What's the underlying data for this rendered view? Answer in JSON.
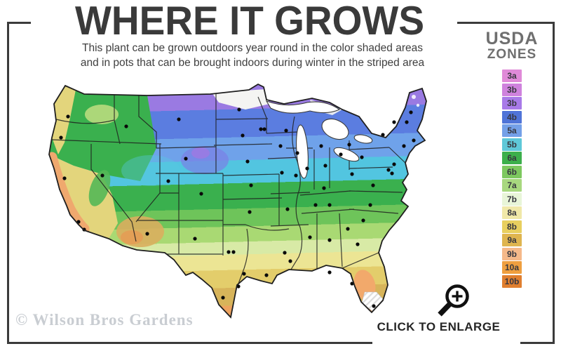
{
  "header": {
    "title": "WHERE IT GROWS",
    "subtitle_line1": "This plant can be grown outdoors year round in the color shaded areas",
    "subtitle_line2": "and in pots that can be brought indoors during winter in the striped area"
  },
  "legend": {
    "title_line1": "USDA",
    "title_line2": "ZONES",
    "zones": [
      {
        "label": "3a",
        "color": "#e08ad8"
      },
      {
        "label": "3b",
        "color": "#cf82dd"
      },
      {
        "label": "3b",
        "color": "#a87ae8"
      },
      {
        "label": "4b",
        "color": "#4f74d8"
      },
      {
        "label": "5a",
        "color": "#74a0e8"
      },
      {
        "label": "5b",
        "color": "#5fc8d8"
      },
      {
        "label": "6a",
        "color": "#3caf4b"
      },
      {
        "label": "6b",
        "color": "#7dc85f"
      },
      {
        "label": "7a",
        "color": "#a8d87f"
      },
      {
        "label": "7b",
        "color": "#e8f5d8"
      },
      {
        "label": "8a",
        "color": "#f0e8a8"
      },
      {
        "label": "8b",
        "color": "#e8cf5f"
      },
      {
        "label": "9a",
        "color": "#dfb54f"
      },
      {
        "label": "9b",
        "color": "#f5b98a"
      },
      {
        "label": "10a",
        "color": "#ef9f3f"
      },
      {
        "label": "10b",
        "color": "#e07f2f"
      }
    ]
  },
  "map": {
    "accent_outline_color": "#1f1f1f",
    "unshaded_color": "#ffffff"
  },
  "footer": {
    "watermark": "© Wilson Bros Gardens",
    "enlarge_label": "CLICK TO ENLARGE"
  }
}
